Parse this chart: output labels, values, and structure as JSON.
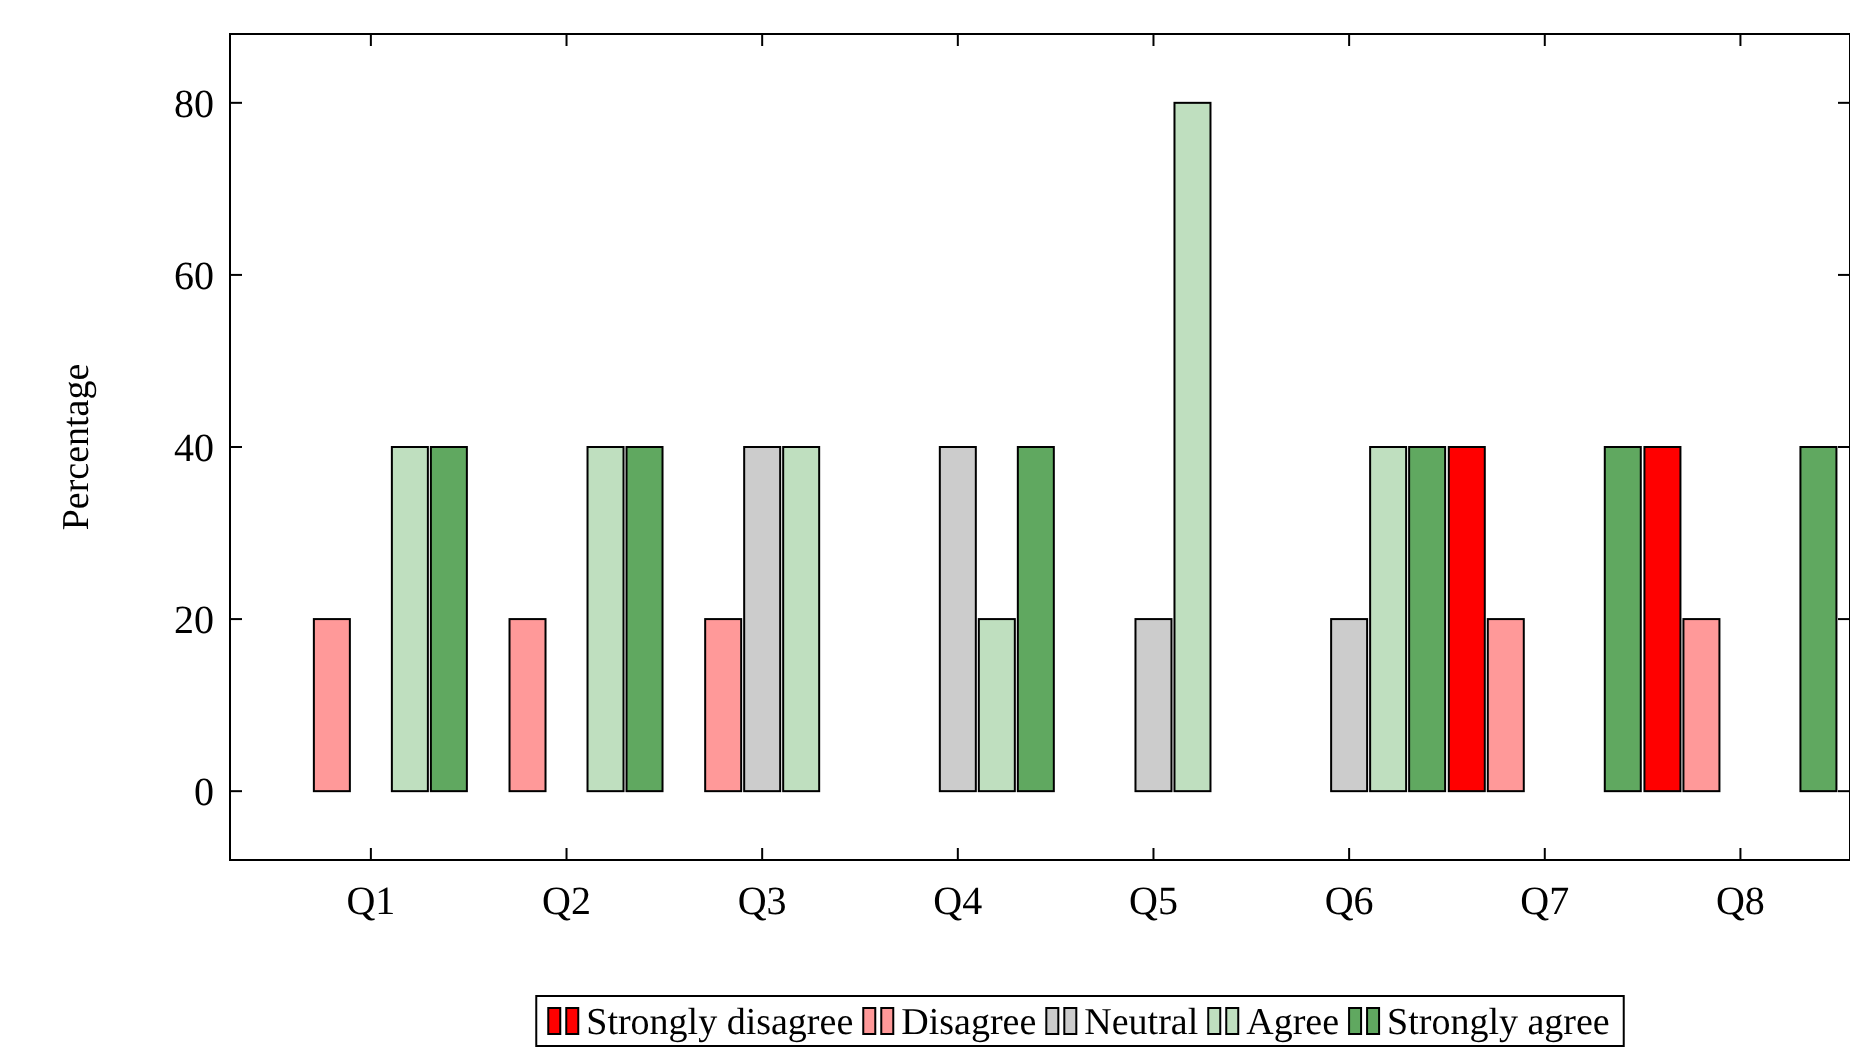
{
  "chart_data": {
    "type": "bar",
    "ylabel": "Percentage",
    "categories": [
      "Q1",
      "Q2",
      "Q3",
      "Q4",
      "Q5",
      "Q6",
      "Q7",
      "Q8"
    ],
    "series": [
      {
        "name": "Strongly disagree",
        "color": "#ff0000",
        "values": [
          0,
          0,
          0,
          0,
          0,
          0,
          40,
          40
        ]
      },
      {
        "name": "Disagree",
        "color": "#ff9999",
        "values": [
          20,
          20,
          20,
          0,
          0,
          0,
          20,
          20
        ]
      },
      {
        "name": "Neutral",
        "color": "#cccccc",
        "values": [
          0,
          0,
          40,
          40,
          20,
          20,
          0,
          0
        ]
      },
      {
        "name": "Agree",
        "color": "#bfdfbf",
        "values": [
          40,
          40,
          40,
          20,
          80,
          40,
          0,
          0
        ]
      },
      {
        "name": "Strongly agree",
        "color": "#60a860",
        "values": [
          40,
          40,
          0,
          40,
          0,
          40,
          40,
          40
        ]
      }
    ],
    "ylim": [
      -8,
      88
    ],
    "yticks": [
      0,
      20,
      40,
      60,
      80
    ],
    "grid": false,
    "legend": "bottom"
  }
}
